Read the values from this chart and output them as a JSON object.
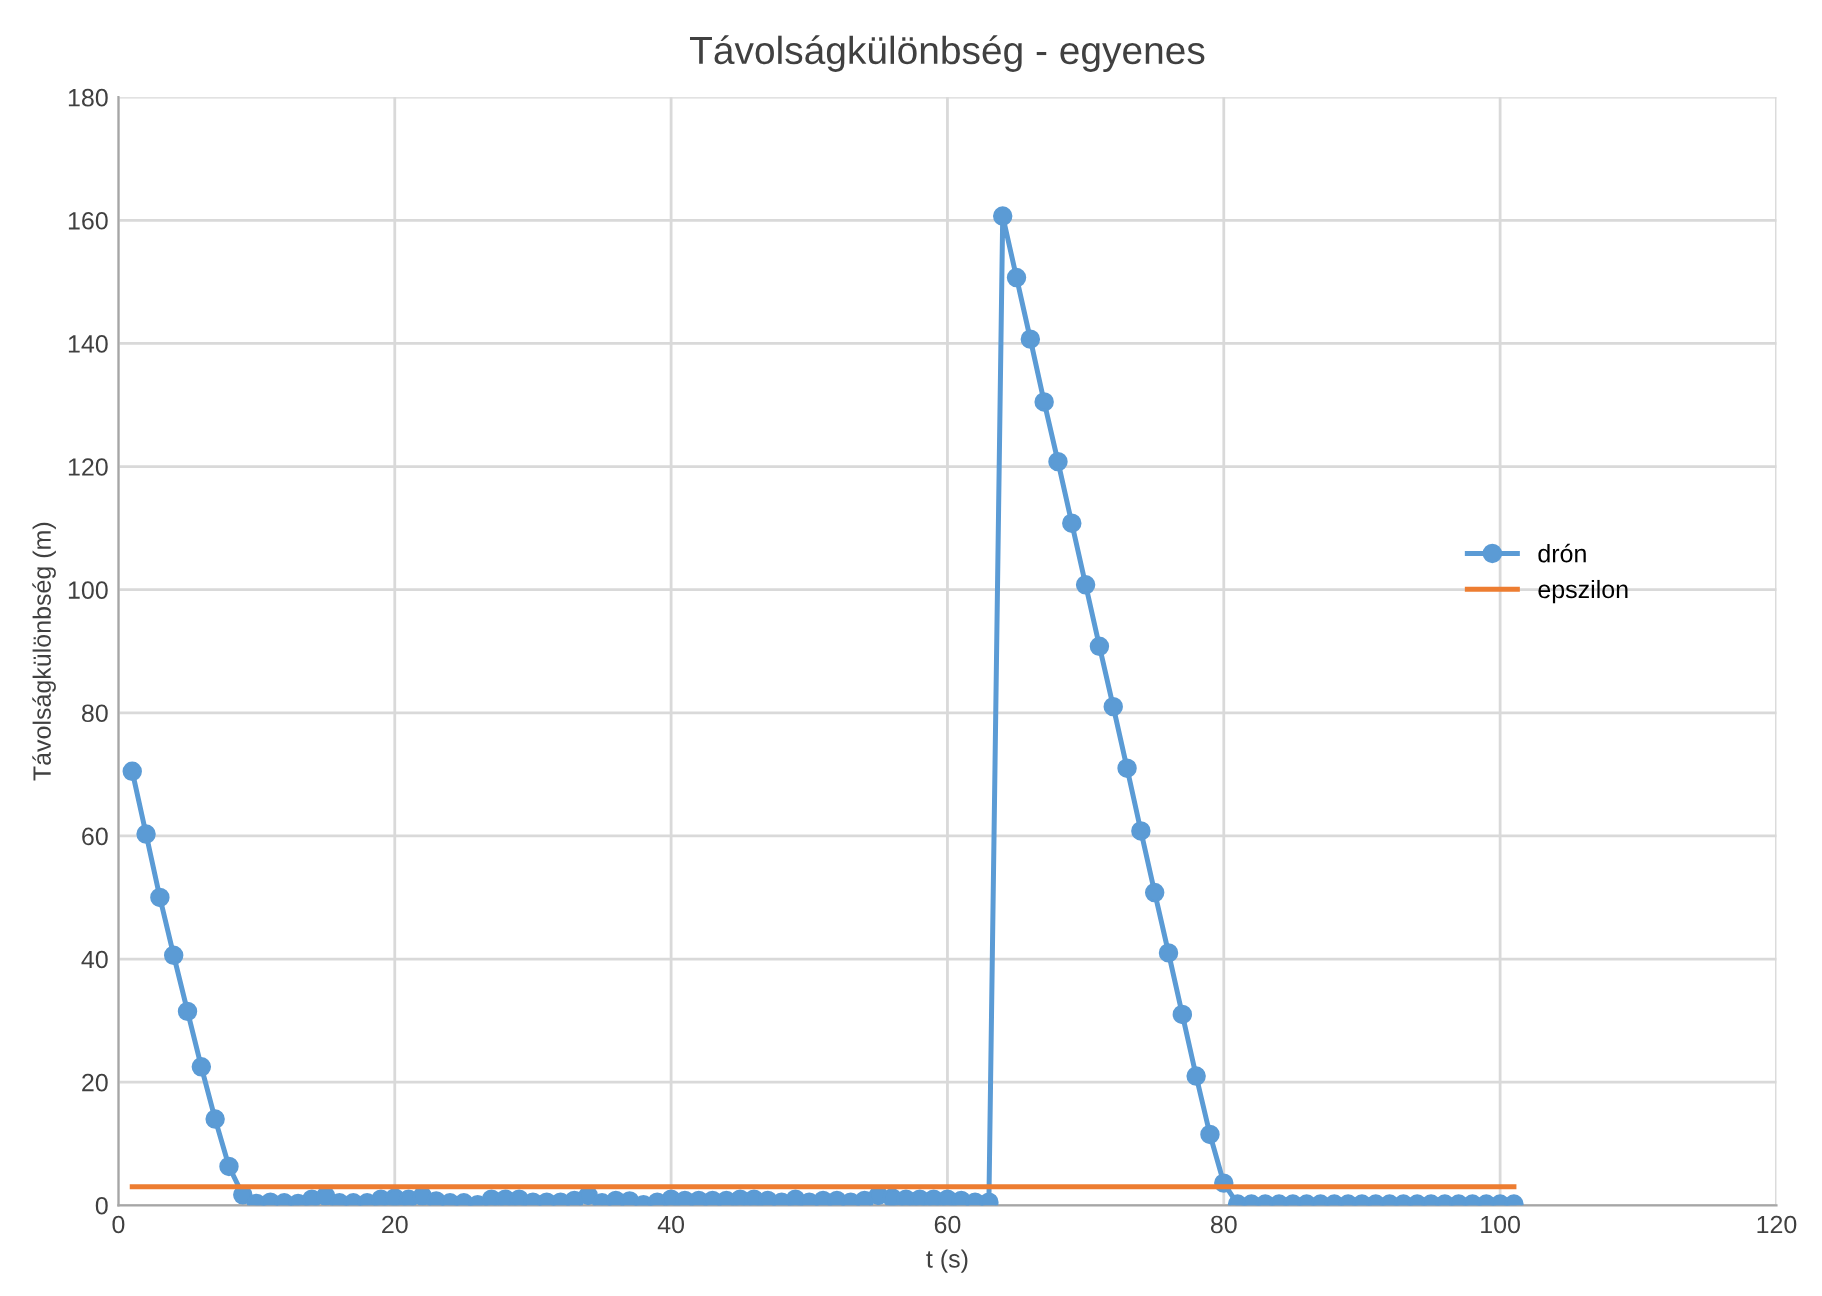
{
  "chart_data": {
    "type": "line",
    "title": "Távolságkülönbség - egyenes",
    "xlabel": "t (s)",
    "ylabel": "Távolságkülönbség (m)",
    "xlim": [
      0,
      120
    ],
    "xticks": [
      0,
      20,
      40,
      60,
      80,
      100,
      120
    ],
    "ylim": [
      0,
      180
    ],
    "yticks": [
      0,
      20,
      40,
      60,
      80,
      100,
      120,
      140,
      160,
      180
    ],
    "grid": true,
    "legend": "right",
    "series": [
      {
        "name": "drón",
        "color": "#5b9bd5",
        "marker": "circle",
        "x": [
          1,
          2,
          3,
          4,
          5,
          6,
          7,
          8,
          9,
          10,
          11,
          12,
          13,
          14,
          15,
          16,
          17,
          18,
          19,
          20,
          21,
          22,
          23,
          24,
          25,
          26,
          27,
          28,
          29,
          30,
          31,
          32,
          33,
          34,
          35,
          36,
          37,
          38,
          39,
          40,
          41,
          42,
          43,
          44,
          45,
          46,
          47,
          48,
          49,
          50,
          51,
          52,
          53,
          54,
          55,
          56,
          57,
          58,
          59,
          60,
          61,
          62,
          63,
          64,
          65,
          66,
          67,
          68,
          69,
          70,
          71,
          72,
          73,
          74,
          75,
          76,
          77,
          78,
          79,
          80,
          81,
          82,
          83,
          84,
          85,
          86,
          87,
          88,
          89,
          90,
          91,
          92,
          93,
          94,
          95,
          96,
          97,
          98,
          99,
          100,
          101
        ],
        "values": [
          70.5,
          60.3,
          50,
          40.6,
          31.5,
          22.5,
          14,
          6.3,
          1.7,
          0.3,
          0.5,
          0.4,
          0.3,
          1.0,
          1.5,
          0.4,
          0.4,
          0.4,
          1.0,
          1.2,
          1.0,
          1.5,
          0.7,
          0.4,
          0.4,
          0.1,
          1.0,
          1.0,
          1.0,
          0.5,
          0.5,
          0.5,
          0.8,
          1.6,
          0.4,
          0.8,
          0.7,
          0.1,
          0.5,
          1.0,
          0.8,
          0.8,
          0.8,
          0.8,
          1.0,
          1.0,
          0.8,
          0.5,
          1.0,
          0.5,
          0.8,
          0.8,
          0.5,
          0.8,
          1.6,
          1.2,
          1.0,
          1.0,
          1.0,
          1.0,
          0.8,
          0.5,
          0.5,
          160.7,
          150.7,
          140.7,
          130.5,
          120.8,
          110.8,
          100.8,
          90.8,
          81,
          71,
          60.8,
          50.8,
          41,
          31,
          21,
          11.5,
          3.6,
          0.2,
          0.2,
          0.2,
          0.2,
          0.2,
          0.2,
          0.2,
          0.2,
          0.2,
          0.2,
          0.2,
          0.2,
          0.2,
          0.2,
          0.2,
          0.2,
          0.2,
          0.2,
          0.2,
          0.2,
          0.2
        ]
      },
      {
        "name": "epszilon",
        "color": "#ed7d31",
        "marker": "none",
        "x": [
          1,
          101
        ],
        "values": [
          3,
          3
        ]
      }
    ]
  }
}
